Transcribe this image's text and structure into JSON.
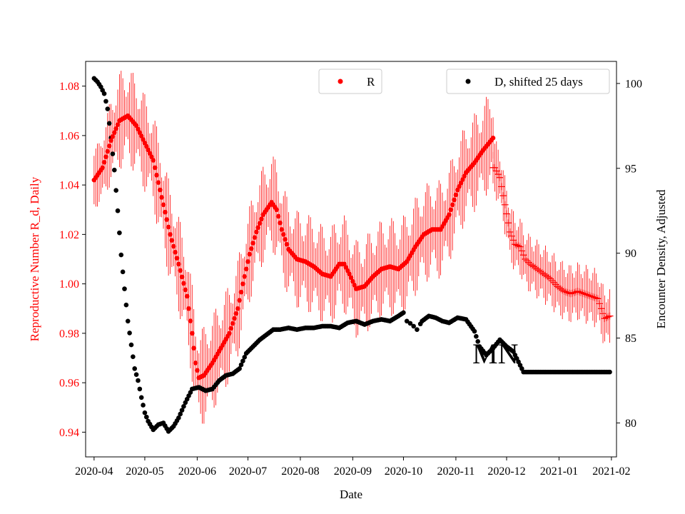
{
  "chart_data": {
    "type": "scatter",
    "title": "",
    "xlabel": "Date",
    "ylabel_left": "Reproductive Number R_d, Daily",
    "ylabel_right": "Encounter Density, Adjusted",
    "annotation": "MN",
    "colors": {
      "r_series": "#ff0000",
      "d_series": "#000000",
      "left_axis": "#ff0000"
    },
    "xlim": [
      -5,
      309
    ],
    "ylim_left": [
      0.93,
      1.09
    ],
    "ylim_right": [
      78.0,
      101.3
    ],
    "x_ticks": [
      {
        "day": 0,
        "label": "2020-04"
      },
      {
        "day": 30,
        "label": "2020-05"
      },
      {
        "day": 61,
        "label": "2020-06"
      },
      {
        "day": 91,
        "label": "2020-07"
      },
      {
        "day": 122,
        "label": "2020-08"
      },
      {
        "day": 153,
        "label": "2020-09"
      },
      {
        "day": 183,
        "label": "2020-10"
      },
      {
        "day": 214,
        "label": "2020-11"
      },
      {
        "day": 244,
        "label": "2020-12"
      },
      {
        "day": 275,
        "label": "2021-01"
      },
      {
        "day": 306,
        "label": "2021-02"
      }
    ],
    "y_ticks_left": [
      {
        "value": 0.94,
        "label": "0.94"
      },
      {
        "value": 0.96,
        "label": "0.96"
      },
      {
        "value": 0.98,
        "label": "0.98"
      },
      {
        "value": 1.0,
        "label": "1.00"
      },
      {
        "value": 1.02,
        "label": "1.02"
      },
      {
        "value": 1.04,
        "label": "1.04"
      },
      {
        "value": 1.06,
        "label": "1.06"
      },
      {
        "value": 1.08,
        "label": "1.08"
      }
    ],
    "y_ticks_right": [
      {
        "value": 80,
        "label": "80"
      },
      {
        "value": 85,
        "label": "85"
      },
      {
        "value": 90,
        "label": "90"
      },
      {
        "value": 95,
        "label": "95"
      },
      {
        "value": 100,
        "label": "100"
      }
    ],
    "legend": [
      {
        "name": "R",
        "color": "#ff0000",
        "position": "top-center"
      },
      {
        "name": "D, shifted 25 days",
        "color": "#000000",
        "position": "top-right"
      }
    ],
    "series": [
      {
        "name": "R",
        "axis": "left",
        "marker": "dot",
        "days_start": 0,
        "days_end": 236,
        "anchors": [
          [
            0,
            1.042
          ],
          [
            5,
            1.047
          ],
          [
            10,
            1.058
          ],
          [
            15,
            1.066
          ],
          [
            20,
            1.068
          ],
          [
            25,
            1.064
          ],
          [
            30,
            1.057
          ],
          [
            35,
            1.05
          ],
          [
            40,
            1.035
          ],
          [
            45,
            1.02
          ],
          [
            50,
            1.008
          ],
          [
            55,
            0.995
          ],
          [
            58,
            0.98
          ],
          [
            60,
            0.968
          ],
          [
            62,
            0.962
          ],
          [
            65,
            0.963
          ],
          [
            70,
            0.968
          ],
          [
            75,
            0.974
          ],
          [
            80,
            0.98
          ],
          [
            85,
            0.99
          ],
          [
            88,
            1.0
          ],
          [
            92,
            1.012
          ],
          [
            96,
            1.021
          ],
          [
            100,
            1.028
          ],
          [
            103,
            1.031
          ],
          [
            105,
            1.033
          ],
          [
            108,
            1.03
          ],
          [
            111,
            1.022
          ],
          [
            115,
            1.014
          ],
          [
            120,
            1.01
          ],
          [
            125,
            1.009
          ],
          [
            130,
            1.007
          ],
          [
            135,
            1.004
          ],
          [
            140,
            1.003
          ],
          [
            145,
            1.008
          ],
          [
            148,
            1.008
          ],
          [
            151,
            1.004
          ],
          [
            155,
            0.998
          ],
          [
            160,
            0.999
          ],
          [
            165,
            1.003
          ],
          [
            170,
            1.006
          ],
          [
            175,
            1.007
          ],
          [
            180,
            1.006
          ],
          [
            185,
            1.009
          ],
          [
            190,
            1.015
          ],
          [
            195,
            1.02
          ],
          [
            200,
            1.022
          ],
          [
            205,
            1.022
          ],
          [
            210,
            1.028
          ],
          [
            215,
            1.038
          ],
          [
            220,
            1.045
          ],
          [
            225,
            1.049
          ],
          [
            230,
            1.054
          ],
          [
            236,
            1.059
          ]
        ],
        "error_half_width_range": [
          0.008,
          0.02
        ]
      },
      {
        "name": "R (projected)",
        "axis": "left",
        "marker": "plus",
        "days_start": 236,
        "days_end": 305,
        "anchors": [
          [
            237,
            1.047
          ],
          [
            240,
            1.043
          ],
          [
            243,
            1.032
          ],
          [
            246,
            1.021
          ],
          [
            249,
            1.016
          ],
          [
            252,
            1.015
          ],
          [
            255,
            1.01
          ],
          [
            258,
            1.008
          ],
          [
            262,
            1.006
          ],
          [
            266,
            1.004
          ],
          [
            270,
            1.002
          ],
          [
            274,
            0.999
          ],
          [
            278,
            0.997
          ],
          [
            282,
            0.996
          ],
          [
            286,
            0.997
          ],
          [
            290,
            0.996
          ],
          [
            294,
            0.995
          ],
          [
            298,
            0.994
          ],
          [
            302,
            0.986
          ],
          [
            305,
            0.987
          ]
        ],
        "error_half_width_range": [
          0.006,
          0.012
        ]
      },
      {
        "name": "D, shifted 25 days",
        "axis": "right",
        "marker": "dot",
        "anchors": [
          [
            0,
            100.3
          ],
          [
            2,
            100.1
          ],
          [
            4,
            99.8
          ],
          [
            6,
            99.4
          ],
          [
            8,
            98.5
          ],
          [
            10,
            96.8
          ],
          [
            12,
            94.9
          ],
          [
            14,
            92.5
          ],
          [
            16,
            89.9
          ],
          [
            18,
            87.9
          ],
          [
            20,
            86.0
          ],
          [
            22,
            84.6
          ],
          [
            24,
            83.2
          ],
          [
            26,
            82.5
          ],
          [
            28,
            81.5
          ],
          [
            30,
            80.6
          ],
          [
            32,
            80.1
          ],
          [
            35,
            79.6
          ],
          [
            38,
            79.9
          ],
          [
            41,
            80.0
          ],
          [
            44,
            79.5
          ],
          [
            47,
            79.8
          ],
          [
            50,
            80.3
          ],
          [
            54,
            81.2
          ],
          [
            58,
            82.0
          ],
          [
            62,
            82.1
          ],
          [
            66,
            81.9
          ],
          [
            70,
            82.0
          ],
          [
            74,
            82.5
          ],
          [
            78,
            82.8
          ],
          [
            82,
            82.9
          ],
          [
            86,
            83.2
          ],
          [
            90,
            84.1
          ],
          [
            94,
            84.5
          ],
          [
            98,
            84.9
          ],
          [
            102,
            85.2
          ],
          [
            106,
            85.5
          ],
          [
            110,
            85.5
          ],
          [
            115,
            85.6
          ],
          [
            120,
            85.5
          ],
          [
            125,
            85.6
          ],
          [
            130,
            85.6
          ],
          [
            135,
            85.7
          ],
          [
            140,
            85.7
          ],
          [
            145,
            85.6
          ],
          [
            150,
            85.9
          ],
          [
            155,
            86.0
          ],
          [
            160,
            85.8
          ],
          [
            165,
            86.0
          ],
          [
            170,
            86.1
          ],
          [
            175,
            86.0
          ],
          [
            180,
            86.3
          ],
          [
            183,
            86.5
          ],
          [
            185,
            86.0
          ],
          [
            188,
            85.8
          ],
          [
            191,
            85.5
          ],
          [
            194,
            86.0
          ],
          [
            198,
            86.3
          ],
          [
            202,
            86.2
          ],
          [
            206,
            86.0
          ],
          [
            210,
            85.9
          ],
          [
            215,
            86.2
          ],
          [
            220,
            86.1
          ],
          [
            225,
            85.4
          ],
          [
            228,
            84.5
          ],
          [
            232,
            84.0
          ],
          [
            236,
            84.4
          ],
          [
            240,
            84.9
          ],
          [
            244,
            84.5
          ],
          [
            248,
            84.2
          ],
          [
            251,
            83.6
          ],
          [
            254,
            83.0
          ],
          [
            260,
            83.0
          ],
          [
            270,
            83.0
          ],
          [
            280,
            83.0
          ],
          [
            290,
            83.0
          ],
          [
            300,
            83.0
          ],
          [
            305,
            83.0
          ]
        ]
      }
    ]
  }
}
